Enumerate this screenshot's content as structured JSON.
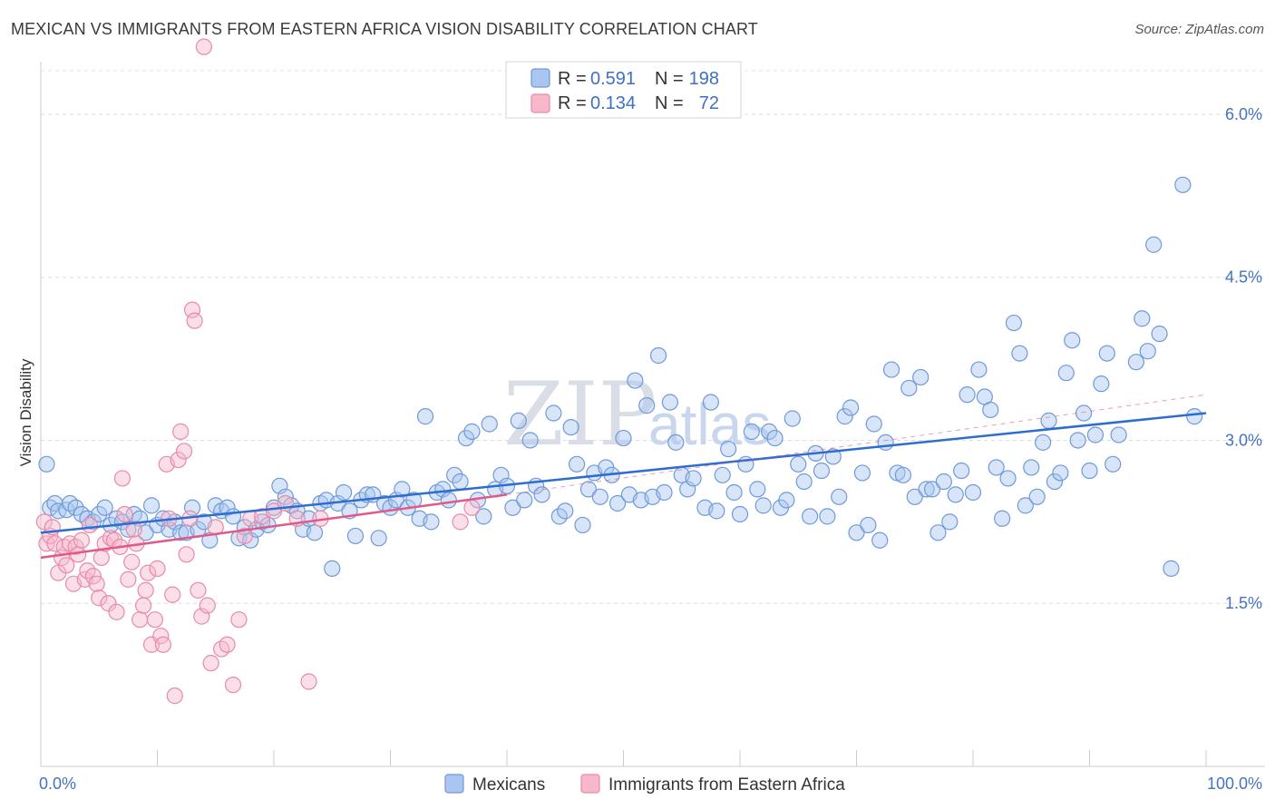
{
  "header": {
    "title": "MEXICAN VS IMMIGRANTS FROM EASTERN AFRICA VISION DISABILITY CORRELATION CHART",
    "source": "Source: ZipAtlas.com"
  },
  "watermark": {
    "part1": "ZIP",
    "part2": "atlas"
  },
  "legend": {
    "rows": [
      {
        "r_label": "R =",
        "r_value": "0.591",
        "n_label": "N =",
        "n_value": "198",
        "color": "#a8c6f0",
        "stroke": "#6f9ad8"
      },
      {
        "r_label": "R =",
        "r_value": "0.134",
        "n_label": "N =",
        "n_value": "72",
        "color": "#f7b8cb",
        "stroke": "#e88aa8"
      }
    ]
  },
  "bottom_legend": {
    "items": [
      {
        "label": "Mexicans",
        "color": "#a8c6f0",
        "stroke": "#6f9ad8"
      },
      {
        "label": "Immigrants from Eastern Africa",
        "color": "#f7b8cb",
        "stroke": "#e88aa8"
      }
    ]
  },
  "chart_data": {
    "type": "scatter",
    "title": "MEXICAN VS IMMIGRANTS FROM EASTERN AFRICA VISION DISABILITY CORRELATION CHART",
    "ylabel": "Vision Disability",
    "xlabel": "",
    "xlim": [
      0,
      100
    ],
    "ylim": [
      0,
      6.4
    ],
    "x_tick_labels": [
      "0.0%",
      "100.0%"
    ],
    "y_ticks": [
      1.5,
      3.0,
      4.5,
      6.0
    ],
    "y_tick_labels": [
      "1.5%",
      "3.0%",
      "4.5%",
      "6.0%"
    ],
    "grid": true,
    "legend_position": "top-center",
    "series": [
      {
        "name": "Mexicans",
        "color": "#a8c6f0",
        "stroke": "#6f9ad8",
        "line_color": "#2e6dd0",
        "trend": {
          "x0": 0,
          "y0": 2.15,
          "x1": 100,
          "y1": 3.25
        },
        "trend_dashed_extension": false,
        "points": [
          [
            0.5,
            2.78
          ],
          [
            0.8,
            2.38
          ],
          [
            1.2,
            2.42
          ],
          [
            1.5,
            2.35
          ],
          [
            2.2,
            2.36
          ],
          [
            2.5,
            2.42
          ],
          [
            3.0,
            2.38
          ],
          [
            3.5,
            2.32
          ],
          [
            4.0,
            2.28
          ],
          [
            4.5,
            2.25
          ],
          [
            5.0,
            2.32
          ],
          [
            5.5,
            2.38
          ],
          [
            6.0,
            2.22
          ],
          [
            6.5,
            2.28
          ],
          [
            7.0,
            2.25
          ],
          [
            7.5,
            2.18
          ],
          [
            8.0,
            2.32
          ],
          [
            8.5,
            2.28
          ],
          [
            9.0,
            2.15
          ],
          [
            9.5,
            2.4
          ],
          [
            10.0,
            2.22
          ],
          [
            10.5,
            2.28
          ],
          [
            11.0,
            2.18
          ],
          [
            11.5,
            2.25
          ],
          [
            12.0,
            2.15
          ],
          [
            12.5,
            2.15
          ],
          [
            13.0,
            2.38
          ],
          [
            13.5,
            2.18
          ],
          [
            14.0,
            2.25
          ],
          [
            14.5,
            2.08
          ],
          [
            15.0,
            2.4
          ],
          [
            15.5,
            2.35
          ],
          [
            16.0,
            2.38
          ],
          [
            16.5,
            2.3
          ],
          [
            17.0,
            2.1
          ],
          [
            17.5,
            2.2
          ],
          [
            18.0,
            2.08
          ],
          [
            18.5,
            2.18
          ],
          [
            19.0,
            2.25
          ],
          [
            19.5,
            2.22
          ],
          [
            20.0,
            2.38
          ],
          [
            20.5,
            2.58
          ],
          [
            21.0,
            2.48
          ],
          [
            21.5,
            2.4
          ],
          [
            22.0,
            2.35
          ],
          [
            22.5,
            2.18
          ],
          [
            23.0,
            2.28
          ],
          [
            23.5,
            2.15
          ],
          [
            24.0,
            2.42
          ],
          [
            24.5,
            2.45
          ],
          [
            25.0,
            1.82
          ],
          [
            25.5,
            2.42
          ],
          [
            26.0,
            2.52
          ],
          [
            26.5,
            2.35
          ],
          [
            27.0,
            2.12
          ],
          [
            27.5,
            2.45
          ],
          [
            28.0,
            2.5
          ],
          [
            28.5,
            2.5
          ],
          [
            29.0,
            2.1
          ],
          [
            29.5,
            2.42
          ],
          [
            30.0,
            2.38
          ],
          [
            30.5,
            2.45
          ],
          [
            31.0,
            2.55
          ],
          [
            31.5,
            2.38
          ],
          [
            32.0,
            2.45
          ],
          [
            32.5,
            2.28
          ],
          [
            33.0,
            3.22
          ],
          [
            33.5,
            2.25
          ],
          [
            34.0,
            2.52
          ],
          [
            34.5,
            2.55
          ],
          [
            35.0,
            2.45
          ],
          [
            35.5,
            2.68
          ],
          [
            36.0,
            2.62
          ],
          [
            36.5,
            3.02
          ],
          [
            37.0,
            3.08
          ],
          [
            37.5,
            2.45
          ],
          [
            38.0,
            2.3
          ],
          [
            38.5,
            3.15
          ],
          [
            39.0,
            2.55
          ],
          [
            39.5,
            2.68
          ],
          [
            40.0,
            2.58
          ],
          [
            40.5,
            2.38
          ],
          [
            41.0,
            3.18
          ],
          [
            41.5,
            2.45
          ],
          [
            42.0,
            3.0
          ],
          [
            42.5,
            2.58
          ],
          [
            43.0,
            2.5
          ],
          [
            44.0,
            3.25
          ],
          [
            44.5,
            2.3
          ],
          [
            45.0,
            2.35
          ],
          [
            45.5,
            3.12
          ],
          [
            46.0,
            2.78
          ],
          [
            46.5,
            2.22
          ],
          [
            47.0,
            2.55
          ],
          [
            47.5,
            2.7
          ],
          [
            48.0,
            2.48
          ],
          [
            48.5,
            2.75
          ],
          [
            49.0,
            2.68
          ],
          [
            49.5,
            2.42
          ],
          [
            50.0,
            3.02
          ],
          [
            50.5,
            2.5
          ],
          [
            51.0,
            3.55
          ],
          [
            51.5,
            2.45
          ],
          [
            52.0,
            3.32
          ],
          [
            52.5,
            2.48
          ],
          [
            53.0,
            3.78
          ],
          [
            53.5,
            2.52
          ],
          [
            54.0,
            3.35
          ],
          [
            54.5,
            2.98
          ],
          [
            55.0,
            2.68
          ],
          [
            55.5,
            2.55
          ],
          [
            56.0,
            2.65
          ],
          [
            57.0,
            2.38
          ],
          [
            57.5,
            3.35
          ],
          [
            58.0,
            2.35
          ],
          [
            58.5,
            2.68
          ],
          [
            59.0,
            2.92
          ],
          [
            59.5,
            2.52
          ],
          [
            60.0,
            2.32
          ],
          [
            60.5,
            2.78
          ],
          [
            61.0,
            3.08
          ],
          [
            61.5,
            2.55
          ],
          [
            62.0,
            2.4
          ],
          [
            62.5,
            3.08
          ],
          [
            63.0,
            3.02
          ],
          [
            63.5,
            2.38
          ],
          [
            64.0,
            2.45
          ],
          [
            64.5,
            3.2
          ],
          [
            65.0,
            2.78
          ],
          [
            65.5,
            2.62
          ],
          [
            66.0,
            2.3
          ],
          [
            66.5,
            2.88
          ],
          [
            67.0,
            2.72
          ],
          [
            67.5,
            2.3
          ],
          [
            68.0,
            2.85
          ],
          [
            68.5,
            2.48
          ],
          [
            69.0,
            3.22
          ],
          [
            69.5,
            3.3
          ],
          [
            70.0,
            2.15
          ],
          [
            70.5,
            2.7
          ],
          [
            71.0,
            2.22
          ],
          [
            71.5,
            3.15
          ],
          [
            72.0,
            2.08
          ],
          [
            72.5,
            2.98
          ],
          [
            73.0,
            3.65
          ],
          [
            73.5,
            2.7
          ],
          [
            74.0,
            2.68
          ],
          [
            74.5,
            3.48
          ],
          [
            75.0,
            2.48
          ],
          [
            75.5,
            3.58
          ],
          [
            76.0,
            2.55
          ],
          [
            76.5,
            2.55
          ],
          [
            77.0,
            2.15
          ],
          [
            77.5,
            2.62
          ],
          [
            78.0,
            2.25
          ],
          [
            78.5,
            2.5
          ],
          [
            79.0,
            2.72
          ],
          [
            79.5,
            3.42
          ],
          [
            80.0,
            2.52
          ],
          [
            80.5,
            3.65
          ],
          [
            81.0,
            3.4
          ],
          [
            81.5,
            3.28
          ],
          [
            82.0,
            2.75
          ],
          [
            82.5,
            2.28
          ],
          [
            83.0,
            2.65
          ],
          [
            83.5,
            4.08
          ],
          [
            84.0,
            3.8
          ],
          [
            84.5,
            2.4
          ],
          [
            85.0,
            2.75
          ],
          [
            85.5,
            2.48
          ],
          [
            86.0,
            2.98
          ],
          [
            86.5,
            3.18
          ],
          [
            87.0,
            2.62
          ],
          [
            87.5,
            2.7
          ],
          [
            88.0,
            3.62
          ],
          [
            88.5,
            3.92
          ],
          [
            89.0,
            3.0
          ],
          [
            89.5,
            3.25
          ],
          [
            90.0,
            2.72
          ],
          [
            90.5,
            3.05
          ],
          [
            91.0,
            3.52
          ],
          [
            91.5,
            3.8
          ],
          [
            92.0,
            2.78
          ],
          [
            92.5,
            3.05
          ],
          [
            94.0,
            3.72
          ],
          [
            94.5,
            4.12
          ],
          [
            95.0,
            3.82
          ],
          [
            96.0,
            3.98
          ],
          [
            95.5,
            4.8
          ],
          [
            97.0,
            1.82
          ],
          [
            98.0,
            5.35
          ],
          [
            99.0,
            3.22
          ]
        ]
      },
      {
        "name": "Immigrants from Eastern Africa",
        "color": "#f7b8cb",
        "stroke": "#e88aa8",
        "line_color": "#e0598a",
        "trend": {
          "x0": 0,
          "y0": 1.92,
          "x1": 40,
          "y1": 2.5
        },
        "trend_dashed_extension": true,
        "trend_extension": {
          "x0": 40,
          "y0": 2.5,
          "x1": 100,
          "y1": 3.42
        },
        "points": [
          [
            0.3,
            2.25
          ],
          [
            0.5,
            2.05
          ],
          [
            0.8,
            2.12
          ],
          [
            1.0,
            2.2
          ],
          [
            1.2,
            2.05
          ],
          [
            1.5,
            1.78
          ],
          [
            1.8,
            1.92
          ],
          [
            2.0,
            2.02
          ],
          [
            2.2,
            1.85
          ],
          [
            2.5,
            2.05
          ],
          [
            2.8,
            1.68
          ],
          [
            3.0,
            2.02
          ],
          [
            3.2,
            1.95
          ],
          [
            3.5,
            2.08
          ],
          [
            3.8,
            1.72
          ],
          [
            4.0,
            1.8
          ],
          [
            4.2,
            2.22
          ],
          [
            4.5,
            1.75
          ],
          [
            4.8,
            1.68
          ],
          [
            5.0,
            1.55
          ],
          [
            5.2,
            1.92
          ],
          [
            5.5,
            2.05
          ],
          [
            5.8,
            1.5
          ],
          [
            6.0,
            2.1
          ],
          [
            6.3,
            2.08
          ],
          [
            6.5,
            1.42
          ],
          [
            6.8,
            2.02
          ],
          [
            7.0,
            2.65
          ],
          [
            7.2,
            2.32
          ],
          [
            7.5,
            1.72
          ],
          [
            7.8,
            1.88
          ],
          [
            8.0,
            2.18
          ],
          [
            8.2,
            2.05
          ],
          [
            8.5,
            1.35
          ],
          [
            8.8,
            1.48
          ],
          [
            9.0,
            1.62
          ],
          [
            9.2,
            1.78
          ],
          [
            9.5,
            1.12
          ],
          [
            9.8,
            1.35
          ],
          [
            10.0,
            1.82
          ],
          [
            10.3,
            1.2
          ],
          [
            10.5,
            1.12
          ],
          [
            10.8,
            2.78
          ],
          [
            11.0,
            2.28
          ],
          [
            11.3,
            1.58
          ],
          [
            11.5,
            0.65
          ],
          [
            11.8,
            2.82
          ],
          [
            12.0,
            3.08
          ],
          [
            12.3,
            2.9
          ],
          [
            12.5,
            1.95
          ],
          [
            12.8,
            2.28
          ],
          [
            13.0,
            4.2
          ],
          [
            13.2,
            4.1
          ],
          [
            13.5,
            1.62
          ],
          [
            13.8,
            1.38
          ],
          [
            14.0,
            6.62
          ],
          [
            14.3,
            1.48
          ],
          [
            14.6,
            0.95
          ],
          [
            15.0,
            2.2
          ],
          [
            15.5,
            1.08
          ],
          [
            16.0,
            1.12
          ],
          [
            16.5,
            0.75
          ],
          [
            17.0,
            1.35
          ],
          [
            17.5,
            2.12
          ],
          [
            18.0,
            2.28
          ],
          [
            19.0,
            2.3
          ],
          [
            20.0,
            2.35
          ],
          [
            21.0,
            2.42
          ],
          [
            22.0,
            2.28
          ],
          [
            23.0,
            0.78
          ],
          [
            24.0,
            2.28
          ],
          [
            36.0,
            2.25
          ],
          [
            37.0,
            2.38
          ]
        ]
      }
    ]
  }
}
